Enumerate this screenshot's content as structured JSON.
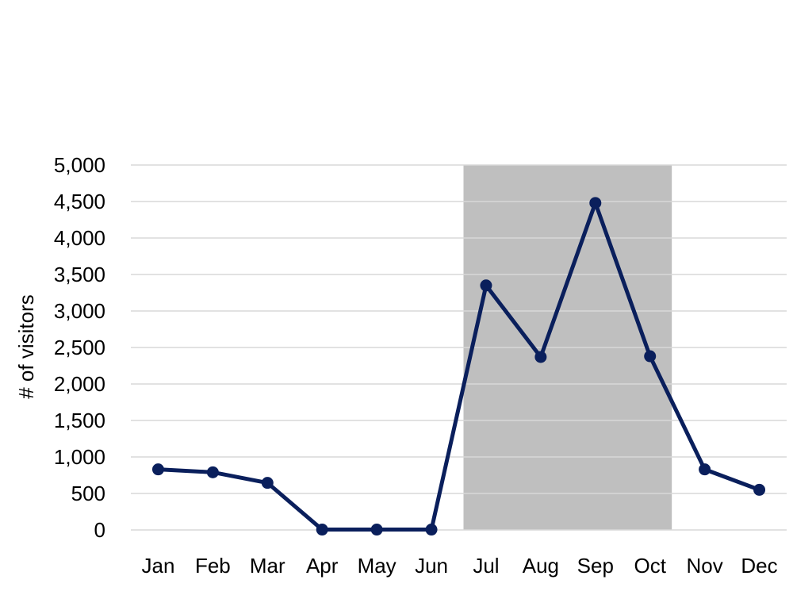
{
  "chart_data": {
    "type": "line",
    "title": "",
    "xlabel": "",
    "ylabel": "# of visitors",
    "categories": [
      "Jan",
      "Feb",
      "Mar",
      "Apr",
      "May",
      "Jun",
      "Jul",
      "Aug",
      "Sep",
      "Oct",
      "Nov",
      "Dec"
    ],
    "series": [
      {
        "values": [
          830,
          790,
          645,
          5,
          5,
          5,
          3350,
          2370,
          4480,
          2380,
          830,
          550
        ]
      }
    ],
    "ylim": [
      0,
      5000
    ],
    "yticks": [
      0,
      500,
      1000,
      1500,
      2000,
      2500,
      3000,
      3500,
      4000,
      4500,
      5000
    ],
    "ytick_labels": [
      "0",
      "500",
      "1,000",
      "1,500",
      "2,000",
      "2,500",
      "3,000",
      "3,500",
      "4,000",
      "4,500",
      "5,000"
    ],
    "highlight_range": {
      "from": "Jul",
      "to": "Oct"
    },
    "grid": true,
    "legend": "none",
    "colors": {
      "line": "#0a1f5c",
      "highlight": "#bfbfbf",
      "grid": "#d9d9d9"
    }
  }
}
